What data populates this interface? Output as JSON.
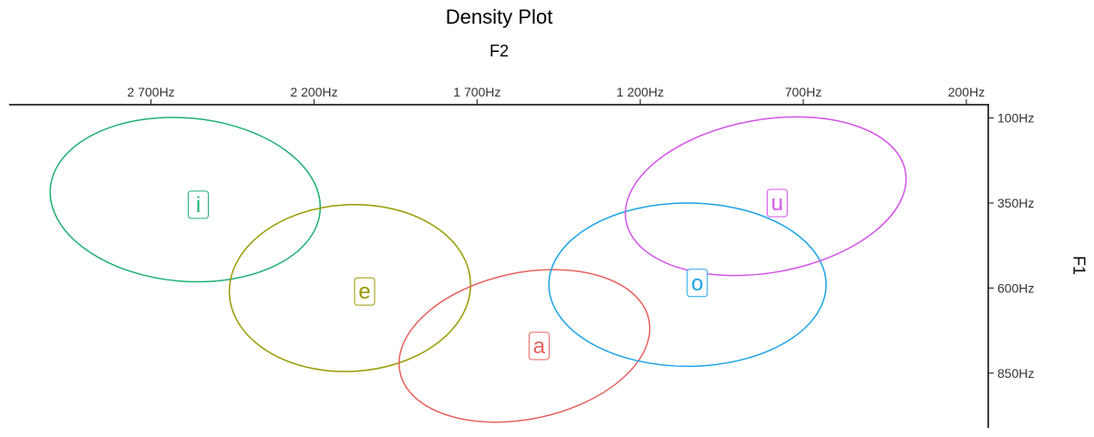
{
  "chart_data": {
    "type": "scatter",
    "subtype": "ellipse-density",
    "title": "Density Plot",
    "xlabel": "F2",
    "ylabel": "F1",
    "x_axis": {
      "position": "top",
      "reversed": true,
      "range": [
        3135,
        130
      ],
      "ticks": [
        2700,
        2200,
        1700,
        1200,
        700,
        200
      ],
      "tick_labels": [
        "2 700Hz",
        "2 200Hz",
        "1 700Hz",
        "1 200Hz",
        "700Hz",
        "200Hz"
      ]
    },
    "y_axis": {
      "position": "right",
      "reversed": true,
      "range": [
        61,
        1011
      ],
      "ticks": [
        100,
        350,
        600,
        850
      ],
      "tick_labels": [
        "100Hz",
        "350Hz",
        "600Hz",
        "850Hz"
      ]
    },
    "grid": false,
    "legend": "none",
    "series": [
      {
        "name": "i",
        "color": "#1FB077",
        "label_x": 2555,
        "label_y": 355,
        "ellipse": {
          "cx": 2595,
          "cy": 340,
          "rx": 415,
          "ry": 240,
          "angle_deg": 5
        }
      },
      {
        "name": "e",
        "color": "#999900",
        "label_x": 2045,
        "label_y": 610,
        "ellipse": {
          "cx": 2090,
          "cy": 600,
          "rx": 370,
          "ry": 245,
          "angle_deg": -3
        }
      },
      {
        "name": "a",
        "color": "#E8615E",
        "label_x": 1510,
        "label_y": 770,
        "ellipse": {
          "cx": 1555,
          "cy": 770,
          "rx": 390,
          "ry": 215,
          "angle_deg": -12
        }
      },
      {
        "name": "o",
        "color": "#1AA3E6",
        "label_x": 1025,
        "label_y": 585,
        "ellipse": {
          "cx": 1055,
          "cy": 590,
          "rx": 425,
          "ry": 240,
          "angle_deg": 0
        }
      },
      {
        "name": "u",
        "color": "#D452E8",
        "label_x": 780,
        "label_y": 350,
        "ellipse": {
          "cx": 815,
          "cy": 330,
          "rx": 435,
          "ry": 225,
          "angle_deg": -10
        }
      }
    ]
  }
}
